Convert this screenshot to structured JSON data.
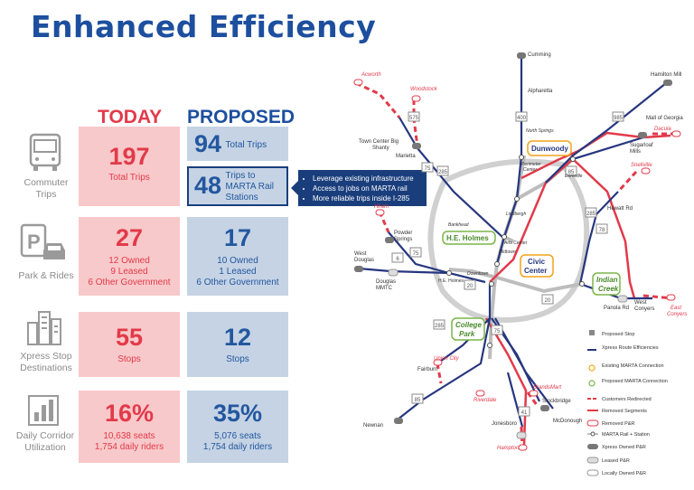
{
  "title": "Enhanced Efficiency",
  "headers": {
    "today": "TODAY",
    "proposed": "PROPOSED"
  },
  "rows": [
    {
      "label_line1": "Commuter",
      "label_line2": "Trips",
      "today_big": "197",
      "today_lines": [
        "Total Trips"
      ],
      "proposed_big": "94",
      "proposed_text": "Total Trips",
      "marta_big": "48",
      "marta_lines": [
        "Trips to",
        "MARTA Rail",
        "Stations"
      ]
    },
    {
      "label_line1": "Park & Rides",
      "label_line2": "",
      "today_big": "27",
      "today_lines": [
        "12 Owned",
        "9 Leased",
        "6 Other Government"
      ],
      "proposed_big": "17",
      "proposed_lines": [
        "10 Owned",
        "1 Leased",
        "6 Other Government"
      ]
    },
    {
      "label_line1": "Xpress Stop",
      "label_line2": "Destinations",
      "today_big": "55",
      "today_lines": [
        "Stops"
      ],
      "proposed_big": "12",
      "proposed_lines": [
        "Stops"
      ]
    },
    {
      "label_line1": "Daily Corridor",
      "label_line2": "Utilization",
      "today_big": "16%",
      "today_lines": [
        "10,638 seats",
        "1,754 daily riders"
      ],
      "proposed_big": "35%",
      "proposed_lines": [
        "5,076 seats",
        "1,754 daily riders"
      ]
    }
  ],
  "callout": [
    "Leverage existing infrastructure",
    "Access to jobs on MARTA rail",
    "More reliable trips inside I-285"
  ],
  "map": {
    "places": {
      "cumming": "Cumming",
      "alpharetta": "Alpharetta",
      "north_springs": "North Springs",
      "hamilton_mill": "Hamilton Mill",
      "mall_of_georgia": "Mall of Georgia",
      "sugarloaf_line1": "Sugarloaf",
      "sugarloaf_line2": "Mills",
      "dacula": "Dacula",
      "acworth": "Acworth",
      "woodstock": "Woodstock",
      "town_center_line1": "Town Center Big",
      "town_center_line2": "Shanty",
      "marietta": "Marietta",
      "perimeter_line1": "Perimeter",
      "perimeter_line2": "Center",
      "doraville": "Doraville",
      "dunwoody": "Dunwoody",
      "lindbergh": "Lindbergh",
      "snellville": "Snellville",
      "hewatt": "Hewatt Rd",
      "hiram": "Hiram",
      "powder_line1": "Powder",
      "powder_line2": "Springs",
      "west_douglas_line1": "West",
      "west_douglas_line2": "Douglas",
      "douglas_line1": "Douglas",
      "douglas_line2": "MMTC",
      "he_holmes": "H.E. Holmes",
      "bankhead": "Bankhead",
      "arts_center": "Arts Center",
      "midtown": "Midtown",
      "civic_center_line1": "Civic",
      "civic_center_line2": "Center",
      "downtown": "Downtown",
      "indian_creek_line1": "Indian",
      "indian_creek_line2": "Creek",
      "panola": "Panola Rd",
      "west_conyers_line1": "West",
      "west_conyers_line2": "Conyers",
      "east_conyers_line1": "East",
      "east_conyers_line2": "Conyers",
      "college_park_line1": "College",
      "college_park_line2": "Park",
      "union_city": "Union City",
      "fairburn": "Fairburn",
      "riverdale": "Riverdale",
      "brandsmart": "BrandsMart",
      "stockbridge": "Stockbridge",
      "mcdonough": "McDonough",
      "jonesboro": "Jonesboro",
      "hampton": "Hampton",
      "newnan": "Newnan"
    },
    "shields": [
      "575",
      "400",
      "985",
      "85",
      "285",
      "75",
      "78",
      "20",
      "285",
      "20",
      "85",
      "75",
      "41",
      "285",
      "75",
      "6"
    ],
    "legend": [
      "Proposed Stop",
      "Xpress Route Efficiencies",
      "Existing MARTA Connection",
      "Proposed MARTA Connection",
      "Customers Redirected",
      "Removed Segments",
      "Removed P&R",
      "MARTA Rail + Station",
      "Xpress Owned P&R",
      "Leased P&R",
      "Locally Owned P&R"
    ],
    "colors": {
      "route": "#26367f",
      "removed": "#e23a4a",
      "marta": "#c8c8c8",
      "existing": "#f2a31a",
      "proposed": "#7ab648"
    }
  }
}
